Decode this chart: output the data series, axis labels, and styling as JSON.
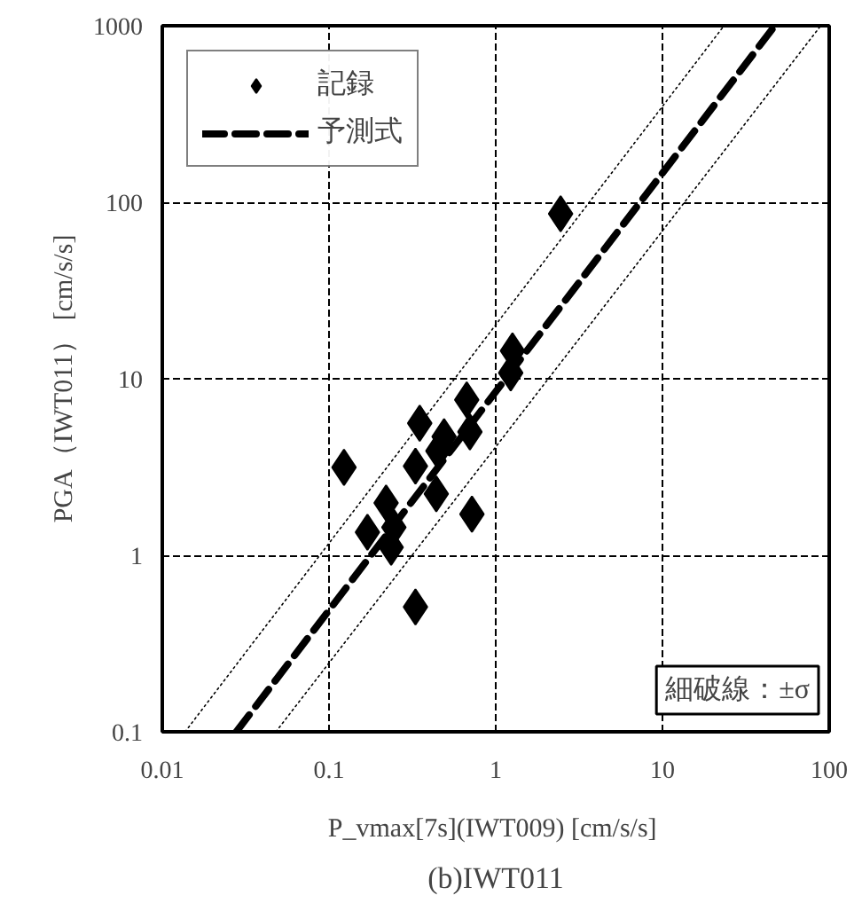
{
  "chart_data": {
    "type": "scatter",
    "title": "(b)IWT011",
    "xlabel": "P_vmax[7s](IWT009)  [cm/s/s]",
    "ylabel": "PGA（IWT011） [cm/s/s]",
    "log": "xy",
    "xlim": [
      0.01,
      100
    ],
    "ylim": [
      0.1,
      1000
    ],
    "xticks": [
      0.01,
      0.1,
      1,
      10,
      100
    ],
    "yticks": [
      0.1,
      1,
      10,
      100,
      1000
    ],
    "grid": true,
    "legend": "top left",
    "annotations": [
      "細破線：±σ"
    ],
    "series": [
      {
        "name": "記録",
        "marker": "diamond",
        "color": "#000000",
        "x": [
          2.45,
          1.26,
          1.23,
          0.67,
          0.35,
          0.7,
          0.49,
          0.45,
          0.33,
          0.123,
          0.44,
          0.72,
          0.22,
          0.17,
          0.245,
          0.236,
          0.33
        ],
        "values": [
          86,
          14.4,
          10.8,
          7.6,
          5.6,
          5.0,
          4.7,
          3.9,
          3.2,
          3.15,
          2.23,
          1.71,
          1.98,
          1.35,
          1.44,
          1.11,
          0.51
        ]
      },
      {
        "name": "予測式",
        "type": "line",
        "color": "#000000",
        "line_style": "dashed",
        "x": [
          0.0278,
          47.2
        ],
        "values": [
          0.1,
          1000
        ]
      },
      {
        "type": "line",
        "color": "#000000",
        "line_style": "dotted",
        "x": [
          0.0137,
          23.4
        ],
        "values": [
          0.1,
          1000
        ]
      },
      {
        "type": "line",
        "color": "#000000",
        "line_style": "dotted",
        "x": [
          0.048,
          89
        ],
        "values": [
          0.1,
          1000
        ]
      }
    ]
  }
}
